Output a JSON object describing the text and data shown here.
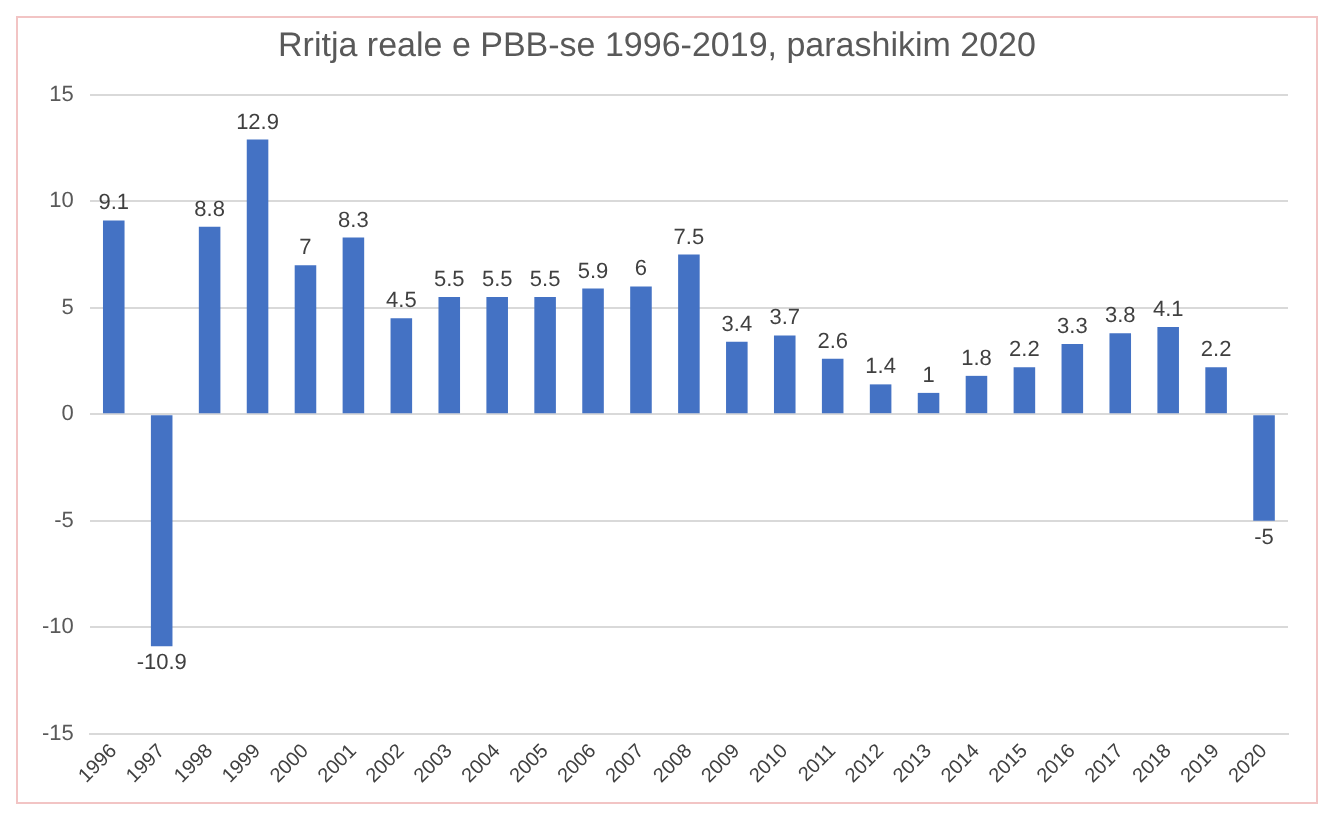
{
  "chart_data": {
    "type": "bar",
    "title": "Rritja reale e PBB-se 1996-2019, parashikim 2020",
    "categories": [
      "1996",
      "1997",
      "1998",
      "1999",
      "2000",
      "2001",
      "2002",
      "2003",
      "2004",
      "2005",
      "2006",
      "2007",
      "2008",
      "2009",
      "2010",
      "2011",
      "2012",
      "2013",
      "2014",
      "2015",
      "2016",
      "2017",
      "2018",
      "2019",
      "2020"
    ],
    "values": [
      9.1,
      -10.9,
      8.8,
      12.9,
      7,
      8.3,
      4.5,
      5.5,
      5.5,
      5.5,
      5.9,
      6,
      7.5,
      3.4,
      3.7,
      2.6,
      1.4,
      1,
      1.8,
      2.2,
      3.3,
      3.8,
      4.1,
      2.2,
      -5
    ],
    "color": "#4472c4",
    "ylim": [
      -15,
      15
    ],
    "yticks": [
      -15,
      -10,
      -5,
      0,
      5,
      10,
      15
    ],
    "grid": "y",
    "data_labels": true
  }
}
